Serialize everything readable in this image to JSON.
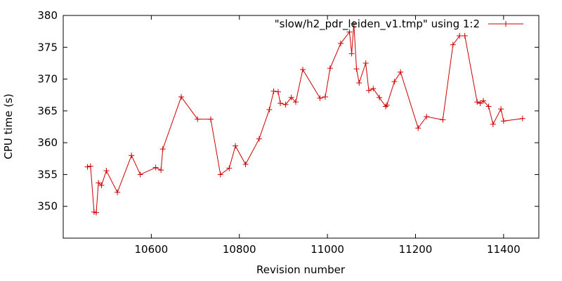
{
  "colors": {
    "series": "#cc0000",
    "axis": "#000000",
    "background": "#ffffff"
  },
  "chart_data": {
    "type": "line",
    "title": "",
    "xlabel": "Revision number",
    "ylabel": "CPU time (s)",
    "xlim": [
      10400,
      11480
    ],
    "ylim": [
      345,
      380
    ],
    "xticks": [
      10600,
      10800,
      11000,
      11200,
      11400
    ],
    "yticks": [
      350,
      355,
      360,
      365,
      370,
      375,
      380
    ],
    "grid": false,
    "legend_position": "top-right",
    "series": [
      {
        "name": "\"slow/h2_pdr_leiden_v1.tmp\" using 1:2",
        "marker": "plus",
        "x": [
          10455,
          10462,
          10470,
          10475,
          10480,
          10487,
          10498,
          10523,
          10555,
          10575,
          10610,
          10622,
          10626,
          10668,
          10705,
          10735,
          10757,
          10777,
          10791,
          10814,
          10845,
          10868,
          10878,
          10888,
          10893,
          10905,
          10918,
          10928,
          10944,
          10983,
          10995,
          11006,
          11030,
          11050,
          11055,
          11060,
          11066,
          11072,
          11087,
          11094,
          11104,
          11118,
          11132,
          11135,
          11152,
          11166,
          11206,
          11225,
          11262,
          11285,
          11300,
          11312,
          11340,
          11347,
          11354,
          11366,
          11376,
          11394,
          11400,
          11443
        ],
        "y": [
          356.2,
          356.3,
          349.1,
          349.0,
          353.7,
          353.3,
          355.6,
          352.2,
          358.0,
          355.0,
          356.1,
          355.7,
          359.0,
          367.2,
          363.7,
          363.7,
          355.0,
          356.0,
          359.5,
          356.6,
          360.6,
          365.2,
          368.1,
          368.0,
          366.2,
          366.0,
          367.1,
          366.4,
          371.5,
          367.0,
          367.2,
          371.7,
          375.6,
          377.4,
          374.0,
          378.7,
          371.6,
          369.4,
          372.5,
          368.2,
          368.5,
          367.1,
          365.7,
          365.9,
          369.6,
          371.1,
          362.3,
          364.1,
          363.6,
          375.4,
          376.8,
          376.8,
          366.4,
          366.2,
          366.6,
          365.7,
          362.9,
          365.3,
          363.4,
          363.8
        ]
      }
    ]
  }
}
